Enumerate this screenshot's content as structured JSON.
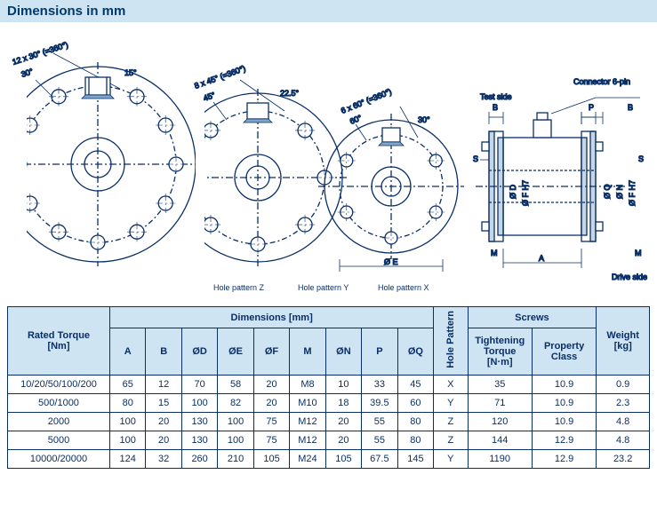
{
  "title": "Dimensions in mm",
  "diagram": {
    "stroke": "#0a2f66",
    "fill_hatch": "#7fa6c9",
    "labels": {
      "hole_z": "Hole pattern Z",
      "hole_y": "Hole pattern Y",
      "hole_x": "Hole pattern X",
      "ang_z1": "12 x 30°  (=360°)",
      "ang_z2": "30°",
      "ang_z3": "15°",
      "ang_y1": "8 x 45°  (=360°)",
      "ang_y2": "45°",
      "ang_y3": "22.5°",
      "ang_x1": "6 x 60°  (=360°)",
      "ang_x2": "60°",
      "ang_x3": "30°",
      "dia_e": "Ø E",
      "conn": "Connector 6-pin",
      "test": "Test side",
      "drive": "Drive side",
      "A": "A",
      "B": "B",
      "P": "P",
      "S": "S",
      "M": "M",
      "phiD": "Ø D",
      "phiF": "Ø F H7",
      "phiQ": "Ø Q",
      "phiN": "Ø N"
    }
  },
  "table": {
    "group_headers": {
      "dimensions": "Dimensions [mm]",
      "screws": "Screws"
    },
    "headers": {
      "rated": "Rated Torque\n[Nm]",
      "A": "A",
      "B": "B",
      "D": "ØD",
      "E": "ØE",
      "F": "ØF",
      "M": "M",
      "N": "ØN",
      "P": "P",
      "Q": "ØQ",
      "hp": "Hole Pattern",
      "tt": "Tightening\nTorque\n[N·m]",
      "pc": "Property\nClass",
      "wt": "Weight\n[kg]"
    },
    "rows": [
      {
        "rated": "10/20/50/100/200",
        "A": "65",
        "B": "12",
        "D": "70",
        "E": "58",
        "F": "20",
        "M": "M8",
        "N": "10",
        "P": "33",
        "Q": "45",
        "hp": "X",
        "tt": "35",
        "pc": "10.9",
        "wt": "0.9"
      },
      {
        "rated": "500/1000",
        "A": "80",
        "B": "15",
        "D": "100",
        "E": "82",
        "F": "20",
        "M": "M10",
        "N": "18",
        "P": "39.5",
        "Q": "60",
        "hp": "Y",
        "tt": "71",
        "pc": "10.9",
        "wt": "2.3"
      },
      {
        "rated": "2000",
        "A": "100",
        "B": "20",
        "D": "130",
        "E": "100",
        "F": "75",
        "M": "M12",
        "N": "20",
        "P": "55",
        "Q": "80",
        "hp": "Z",
        "tt": "120",
        "pc": "10.9",
        "wt": "4.8"
      },
      {
        "rated": "5000",
        "A": "100",
        "B": "20",
        "D": "130",
        "E": "100",
        "F": "75",
        "M": "M12",
        "N": "20",
        "P": "55",
        "Q": "80",
        "hp": "Z",
        "tt": "144",
        "pc": "12.9",
        "wt": "4.8"
      },
      {
        "rated": "10000/20000",
        "A": "124",
        "B": "32",
        "D": "260",
        "E": "210",
        "F": "105",
        "M": "M24",
        "N": "105",
        "P": "67.5",
        "Q": "145",
        "hp": "Y",
        "tt": "1190",
        "pc": "12.9",
        "wt": "23.2"
      }
    ]
  }
}
